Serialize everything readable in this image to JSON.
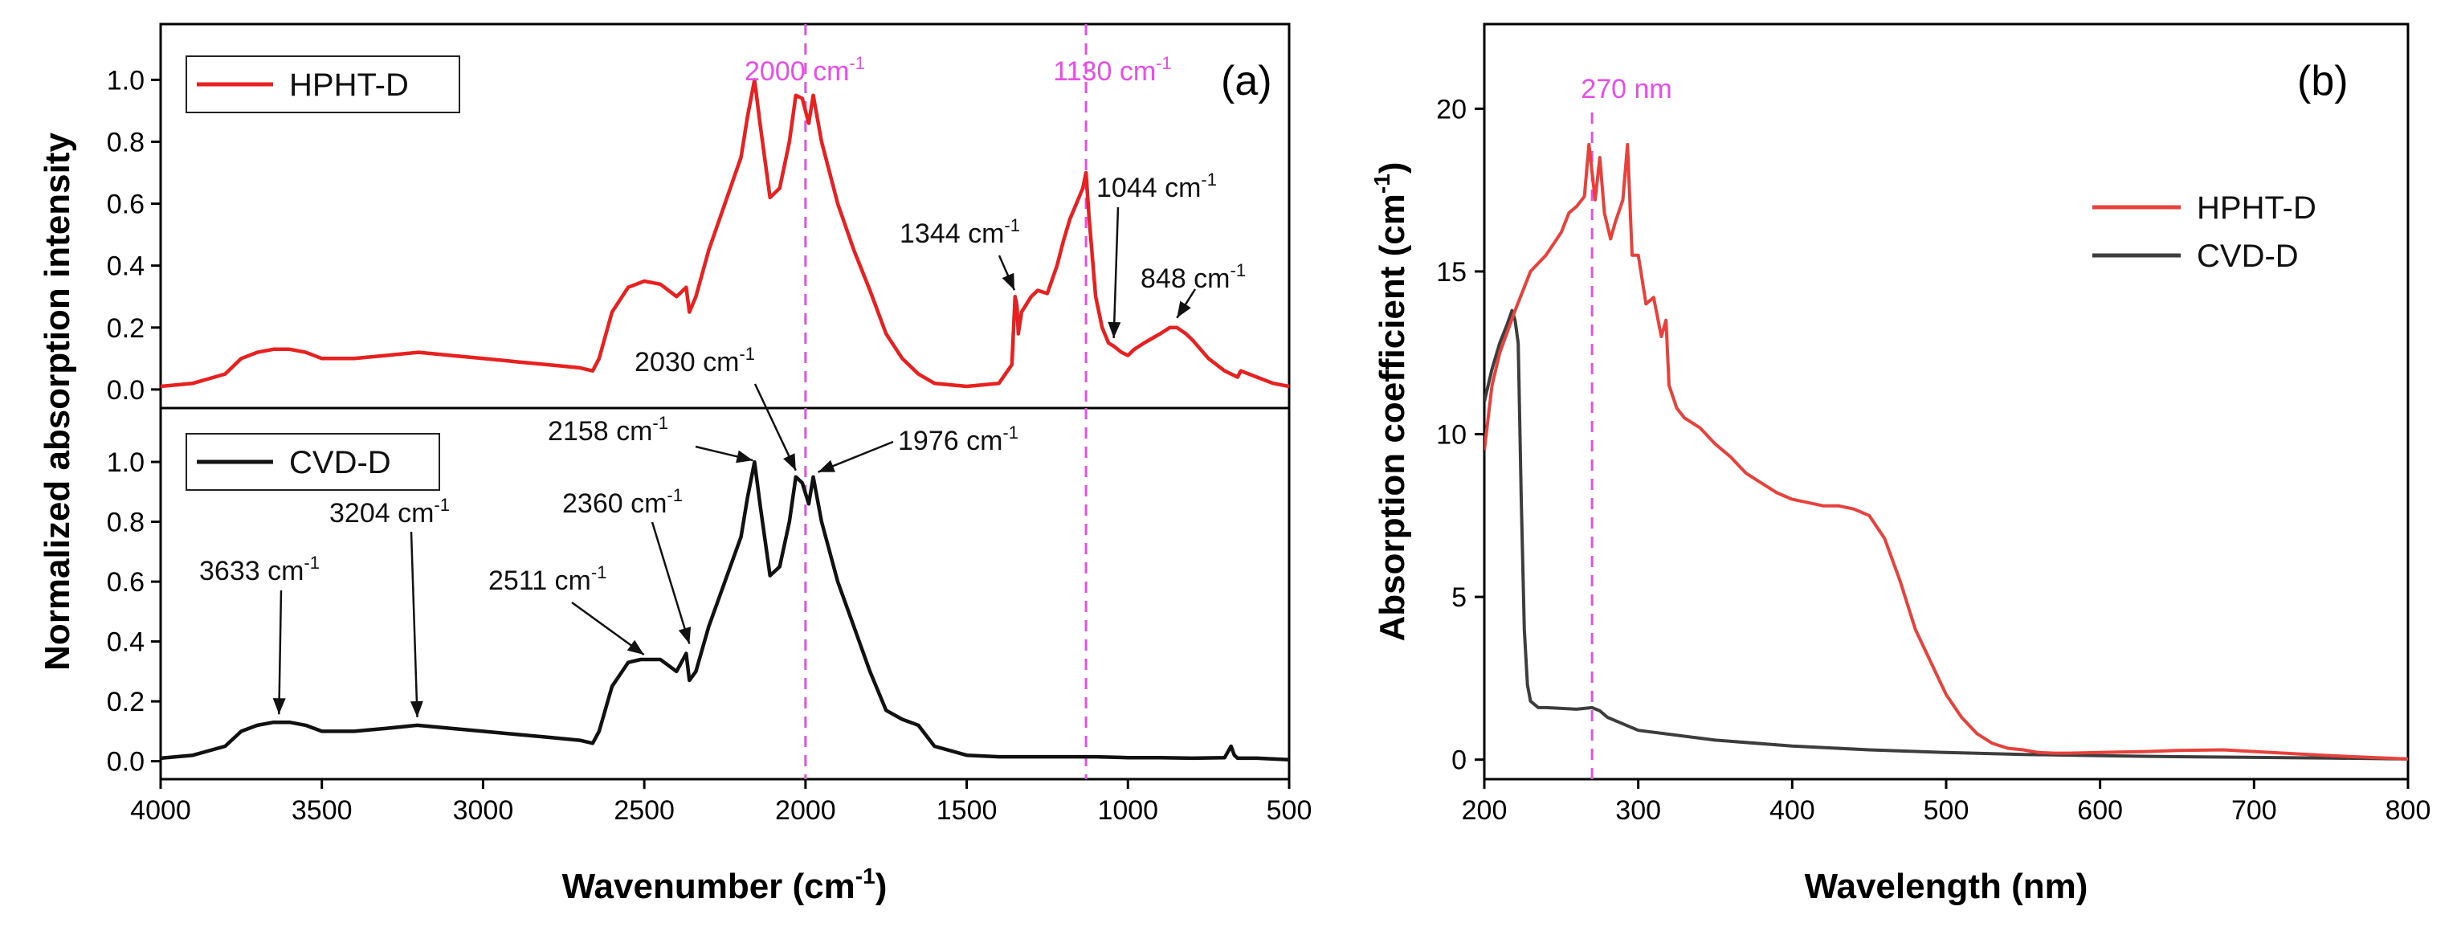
{
  "chart_data": [
    {
      "type": "line",
      "panel_label": "(a)",
      "xlabel": "Wavenumber (cm",
      "xlabel_sup": "-1",
      "xlabel_end": ")",
      "ylabel": "Normalized absorption intensity",
      "xlim": [
        4000,
        500
      ],
      "x_ticks": [
        "4000",
        "3500",
        "3000",
        "2500",
        "2000",
        "1500",
        "1000",
        "500"
      ],
      "y_ticks": [
        "0.0",
        "0.2",
        "0.4",
        "0.6",
        "0.8",
        "1.0"
      ],
      "subplots": [
        {
          "ylim": [
            -0.06,
            1.18
          ],
          "legend": "HPHT-D",
          "color": "#e8201f",
          "series": {
            "name": "HPHT-D",
            "x": [
              4000,
              3900,
              3800,
              3750,
              3700,
              3650,
              3600,
              3550,
              3500,
              3400,
              3300,
              3200,
              3100,
              3000,
              2900,
              2800,
              2700,
              2660,
              2640,
              2600,
              2550,
              2500,
              2450,
              2400,
              2370,
              2360,
              2340,
              2300,
              2250,
              2200,
              2180,
              2158,
              2140,
              2110,
              2080,
              2050,
              2030,
              2010,
              1990,
              1976,
              1950,
              1900,
              1850,
              1800,
              1750,
              1700,
              1650,
              1600,
              1500,
              1400,
              1360,
              1350,
              1344,
              1340,
              1330,
              1300,
              1280,
              1250,
              1220,
              1200,
              1180,
              1160,
              1140,
              1130,
              1120,
              1100,
              1080,
              1060,
              1044,
              1020,
              1000,
              980,
              950,
              900,
              870,
              848,
              820,
              800,
              750,
              700,
              660,
              650,
              600,
              550,
              500
            ],
            "y": [
              0.01,
              0.02,
              0.05,
              0.1,
              0.12,
              0.13,
              0.13,
              0.12,
              0.1,
              0.1,
              0.11,
              0.12,
              0.11,
              0.1,
              0.09,
              0.08,
              0.07,
              0.06,
              0.1,
              0.25,
              0.33,
              0.35,
              0.34,
              0.3,
              0.33,
              0.25,
              0.3,
              0.45,
              0.6,
              0.75,
              0.88,
              1.0,
              0.85,
              0.62,
              0.65,
              0.8,
              0.95,
              0.94,
              0.86,
              0.95,
              0.8,
              0.6,
              0.45,
              0.32,
              0.18,
              0.1,
              0.05,
              0.02,
              0.01,
              0.02,
              0.08,
              0.3,
              0.27,
              0.18,
              0.25,
              0.3,
              0.32,
              0.31,
              0.4,
              0.48,
              0.55,
              0.6,
              0.65,
              0.7,
              0.55,
              0.3,
              0.2,
              0.15,
              0.14,
              0.12,
              0.11,
              0.13,
              0.15,
              0.18,
              0.2,
              0.2,
              0.18,
              0.16,
              0.1,
              0.06,
              0.04,
              0.06,
              0.04,
              0.02,
              0.01
            ]
          },
          "vlines": [
            {
              "x": 2000,
              "label": "2000 cm",
              "sup": "-1"
            },
            {
              "x": 1130,
              "label": "1130 cm",
              "sup": "-1"
            }
          ],
          "annotations": [
            {
              "label": "1344 cm",
              "sup": "-1"
            },
            {
              "label": "1044 cm",
              "sup": "-1"
            },
            {
              "label": "848 cm",
              "sup": "-1"
            }
          ]
        },
        {
          "ylim": [
            -0.06,
            1.18
          ],
          "legend": "CVD-D",
          "color": "#111111",
          "series": {
            "name": "CVD-D",
            "x": [
              4000,
              3900,
              3800,
              3750,
              3700,
              3650,
              3633,
              3600,
              3550,
              3500,
              3400,
              3300,
              3204,
              3100,
              3000,
              2900,
              2800,
              2700,
              2660,
              2640,
              2600,
              2550,
              2511,
              2450,
              2400,
              2370,
              2360,
              2340,
              2300,
              2250,
              2200,
              2180,
              2158,
              2140,
              2110,
              2080,
              2050,
              2030,
              2010,
              1990,
              1976,
              1950,
              1900,
              1850,
              1800,
              1750,
              1700,
              1650,
              1600,
              1500,
              1400,
              1300,
              1200,
              1100,
              1000,
              900,
              800,
              700,
              680,
              670,
              660,
              600,
              500
            ],
            "y": [
              0.01,
              0.02,
              0.05,
              0.1,
              0.12,
              0.13,
              0.13,
              0.13,
              0.12,
              0.1,
              0.1,
              0.11,
              0.12,
              0.11,
              0.1,
              0.09,
              0.08,
              0.07,
              0.06,
              0.1,
              0.25,
              0.33,
              0.34,
              0.34,
              0.3,
              0.36,
              0.27,
              0.3,
              0.45,
              0.6,
              0.75,
              0.88,
              1.0,
              0.85,
              0.62,
              0.65,
              0.8,
              0.95,
              0.93,
              0.86,
              0.95,
              0.8,
              0.6,
              0.45,
              0.3,
              0.17,
              0.14,
              0.12,
              0.05,
              0.02,
              0.015,
              0.015,
              0.015,
              0.015,
              0.012,
              0.012,
              0.01,
              0.012,
              0.05,
              0.02,
              0.01,
              0.01,
              0.005
            ]
          },
          "vlines": [
            {
              "x": 2000
            },
            {
              "x": 1130
            }
          ],
          "annotations": [
            {
              "label": "3633 cm",
              "sup": "-1",
              "x": 3633
            },
            {
              "label": "3204 cm",
              "sup": "-1",
              "x": 3204
            },
            {
              "label": "2511 cm",
              "sup": "-1",
              "x": 2511
            },
            {
              "label": "2360 cm",
              "sup": "-1",
              "x": 2360
            },
            {
              "label": "2158 cm",
              "sup": "-1",
              "x": 2158
            },
            {
              "label": "2030 cm",
              "sup": "-1",
              "x": 2030
            },
            {
              "label": "1976 cm",
              "sup": "-1",
              "x": 1976
            }
          ]
        }
      ]
    },
    {
      "type": "line",
      "panel_label": "(b)",
      "xlabel": "Wavelength (nm)",
      "ylabel": "Absorption coefficient (cm",
      "ylabel_sup": "-1",
      "ylabel_end": ")",
      "xlim": [
        200,
        800
      ],
      "ylim": [
        -0.6,
        22.6
      ],
      "x_ticks": [
        "200",
        "300",
        "400",
        "500",
        "600",
        "700",
        "800"
      ],
      "y_ticks": [
        "0",
        "5",
        "10",
        "15",
        "20"
      ],
      "vlines": [
        {
          "x": 270,
          "label": "270 nm"
        }
      ],
      "series": [
        {
          "name": "HPHT-D",
          "color": "#e8413c",
          "x": [
            200,
            205,
            210,
            220,
            230,
            240,
            250,
            255,
            260,
            265,
            268,
            272,
            275,
            278,
            282,
            285,
            290,
            293,
            296,
            300,
            305,
            310,
            315,
            318,
            320,
            325,
            330,
            340,
            350,
            360,
            370,
            380,
            390,
            400,
            410,
            420,
            430,
            440,
            450,
            460,
            470,
            480,
            490,
            500,
            510,
            520,
            530,
            540,
            550,
            560,
            570,
            580,
            600,
            630,
            650,
            680,
            700,
            750,
            800
          ],
          "y": [
            9.5,
            11.5,
            12.5,
            13.8,
            15.0,
            15.5,
            16.2,
            16.8,
            17.0,
            17.3,
            18.9,
            17.2,
            18.5,
            16.8,
            16.0,
            16.5,
            17.2,
            18.9,
            15.5,
            15.5,
            14.0,
            14.2,
            13.0,
            13.5,
            11.5,
            10.8,
            10.5,
            10.2,
            9.7,
            9.3,
            8.8,
            8.5,
            8.2,
            8.0,
            7.9,
            7.8,
            7.8,
            7.7,
            7.5,
            6.8,
            5.5,
            4.0,
            3.0,
            2.0,
            1.3,
            0.8,
            0.5,
            0.35,
            0.3,
            0.22,
            0.2,
            0.2,
            0.22,
            0.25,
            0.28,
            0.3,
            0.25,
            0.12,
            0.02
          ]
        },
        {
          "name": "CVD-D",
          "color": "#3d3d3d",
          "x": [
            200,
            205,
            210,
            215,
            218,
            220,
            222,
            224,
            226,
            228,
            230,
            235,
            240,
            260,
            270,
            275,
            280,
            300,
            350,
            400,
            450,
            500,
            550,
            600,
            650,
            700,
            750,
            800
          ],
          "y": [
            11.0,
            12.0,
            12.8,
            13.4,
            13.8,
            13.5,
            12.8,
            8.0,
            4.0,
            2.3,
            1.8,
            1.6,
            1.6,
            1.55,
            1.6,
            1.5,
            1.3,
            0.9,
            0.6,
            0.42,
            0.3,
            0.22,
            0.16,
            0.12,
            0.09,
            0.07,
            0.05,
            0.02
          ]
        }
      ]
    }
  ]
}
